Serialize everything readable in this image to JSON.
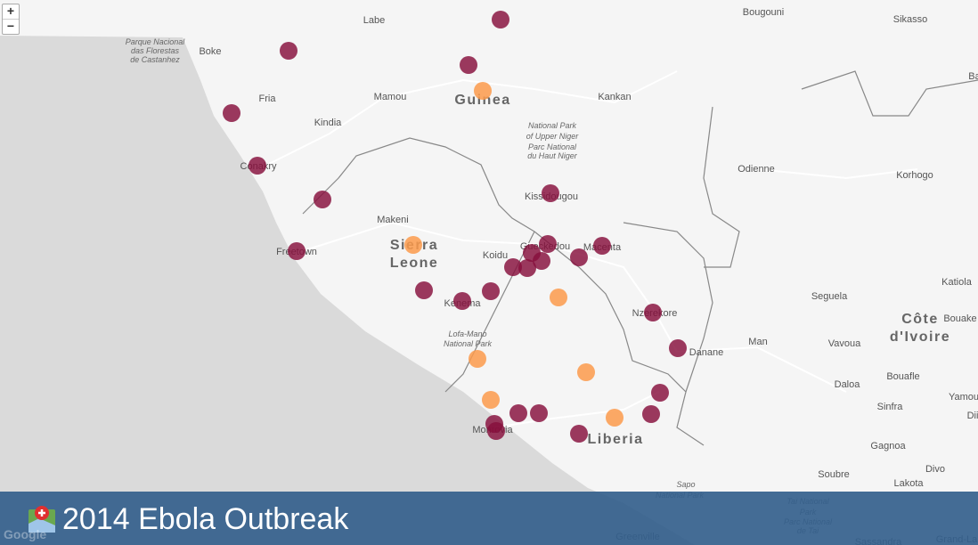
{
  "zoom_controls": {
    "zoom_in": "+",
    "zoom_out": "−"
  },
  "map_labels": [
    "Labe",
    "Boke",
    "Bougouni",
    "Sikasso",
    "Parque Nacional",
    "das Florestas",
    "de Castanhez",
    "Fria",
    "Mamou",
    "Kankan",
    "Guinea",
    "National Park",
    "of Upper Niger",
    "Parc National",
    "du Haut Niger",
    "Kindia",
    "Conakry",
    "Kissidougou",
    "Odienne",
    "Korhogo",
    "Makeni",
    "Sierra",
    "Leone",
    "Freetown",
    "Koidu",
    "Gueckedou",
    "Macenta",
    "Kenema",
    "Katiola",
    "Seguela",
    "Lofa-Mano",
    "National Park",
    "Nzerekore",
    "Côte",
    "d'Ivoire",
    "Bouake",
    "Man",
    "Vavoua",
    "Danane",
    "Daloa",
    "Bouafle",
    "Yamou",
    "Sinfra",
    "Gagnoa",
    "Monrovia",
    "Liberia",
    "Soubre",
    "Divo",
    "Lakota",
    "Sapo",
    "National Park",
    "Tai National",
    "Park",
    "Parc National",
    "de Tai",
    "Sassandra",
    "Greenville",
    "Grand-La",
    "Ba",
    "Dii"
  ],
  "title": "2014 Ebola Outbreak",
  "attribution": "Google"
}
